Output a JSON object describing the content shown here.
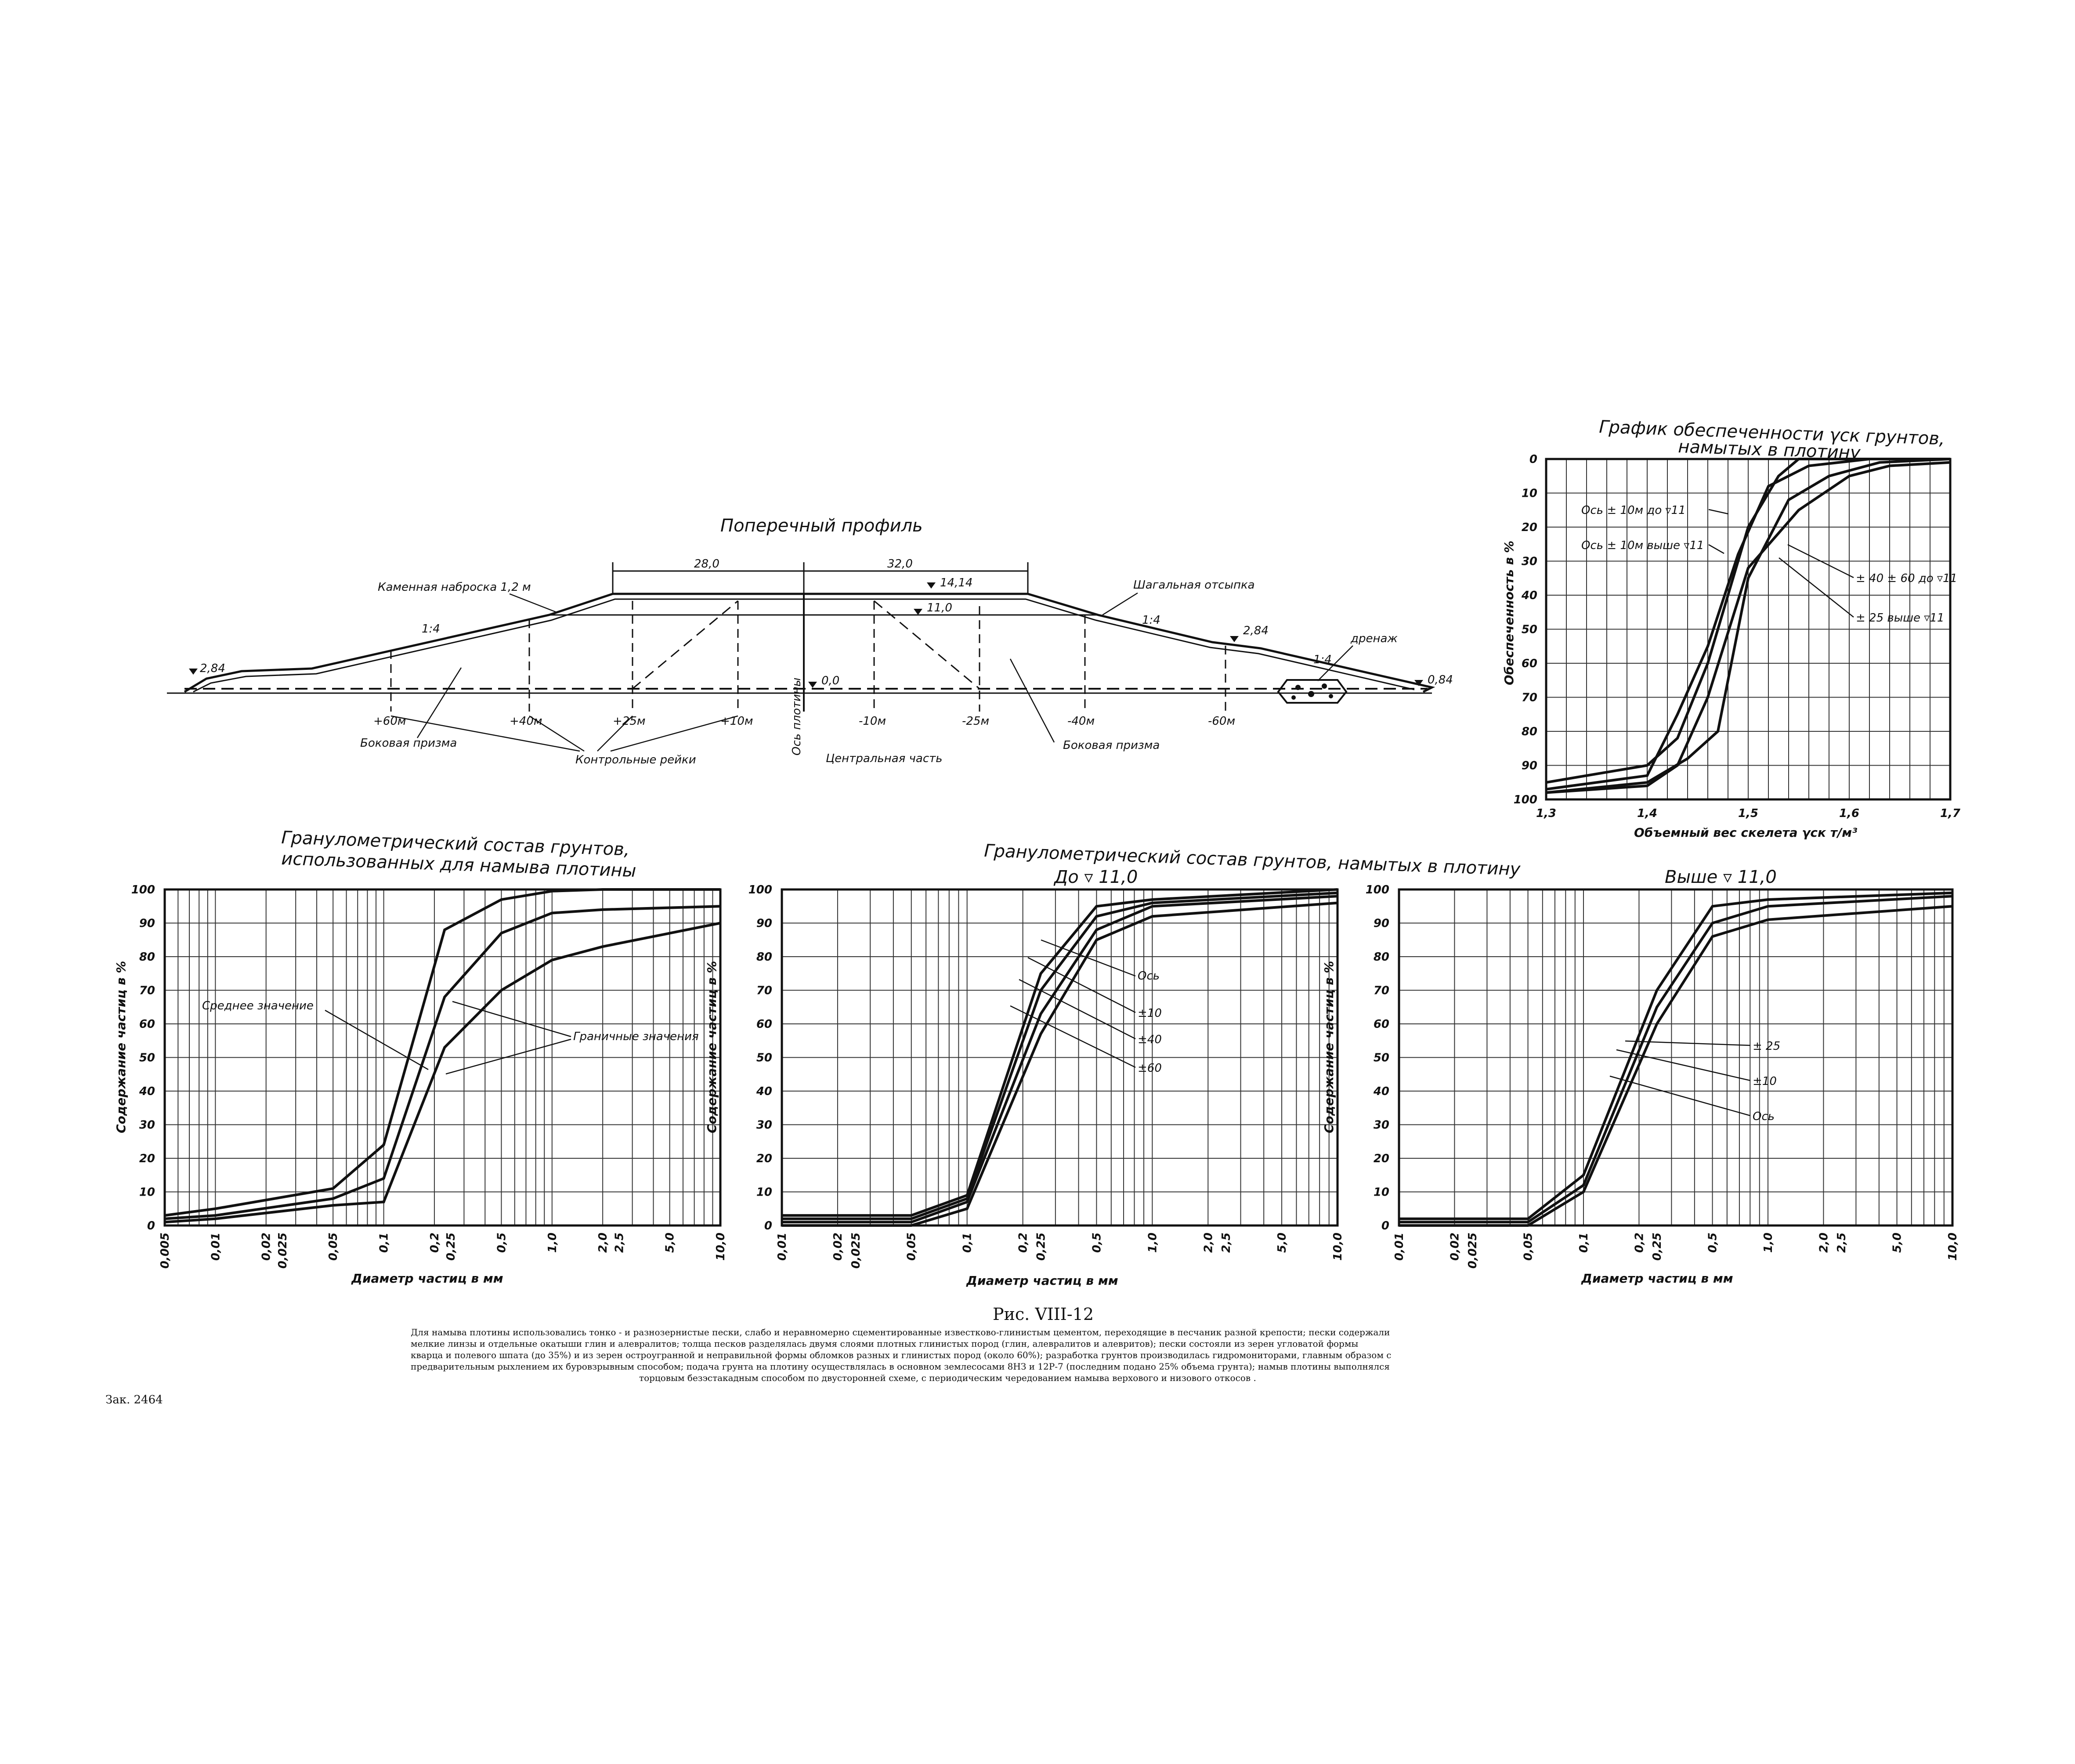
{
  "profile": {
    "title": "Поперечный профиль",
    "dim_left": "28,0",
    "dim_right": "32,0",
    "marks": {
      "crest": "14,14",
      "inner": "11,0",
      "zero": "0,0",
      "left_toe": "2,84",
      "right_berm": "2,84",
      "right_toe": "0,84"
    },
    "slope_labels": [
      "1:4",
      "1:4",
      "1:4"
    ],
    "stations": [
      "+60м",
      "+40м",
      "+25м",
      "+10м",
      "-10м",
      "-25м",
      "-40м",
      "-60м"
    ],
    "axis_label": "Ось плотины",
    "labels": {
      "stone": "Каменная наброска 1,2 м",
      "fill": "Шагальная отсыпка",
      "drain": "дренаж",
      "side_left": "Боковая призма",
      "side_right": "Боковая призма",
      "rails": "Контрольные рейки",
      "center": "Центральная часть"
    }
  },
  "supply_chart": {
    "title_line1": "График обеспеченности γск грунтов,",
    "title_line2": "намытых в плотину",
    "ylabel": "Обеспеченность в %",
    "xlabel": "Объемный вес скелета γск т/м³",
    "yticks": [
      "0",
      "10",
      "20",
      "30",
      "40",
      "50",
      "60",
      "70",
      "80",
      "90",
      "100"
    ],
    "xticks": [
      "1,3",
      "1,4",
      "1,5",
      "1,6",
      "1,7"
    ],
    "labels": [
      "Ось ± 10м до ▿11",
      "Ось ± 10м выше ▿11",
      "± 40 ± 60 до ▿11",
      "± 25 выше ▿11"
    ]
  },
  "gran_titles": {
    "left_line1": "Гранулометрический состав грунтов,",
    "left_line2": "использованных для намыва плотины",
    "mid_line1": "Гранулометрический  состав  грунтов,  намытых  в  плотину",
    "mid_sub": "До ▿ 11,0",
    "right_sub": "Выше ▿ 11,0"
  },
  "gran_common": {
    "ylabel": "Содержание частиц в %",
    "xlabel": "Диаметр частиц в мм",
    "yticks": [
      "0",
      "10",
      "20",
      "30",
      "40",
      "50",
      "60",
      "70",
      "80",
      "90",
      "100"
    ]
  },
  "gran1": {
    "xticks": [
      "0,005",
      "0,01",
      "0,02",
      "0,025",
      "0,05",
      "0,1",
      "0,2",
      "0,25",
      "0,5",
      "1,0",
      "2,0",
      "2,5",
      "5,0",
      "10,0"
    ],
    "labels": [
      "Среднее значение",
      "Граничные значения"
    ]
  },
  "gran2": {
    "xticks": [
      "0,01",
      "0,02",
      "0,025",
      "0,05",
      "0,1",
      "0,2",
      "0,25",
      "0,5",
      "1,0",
      "2,0",
      "2,5",
      "5,0",
      "10,0"
    ],
    "labels": [
      "Ось",
      "±10",
      "±40",
      "±60"
    ]
  },
  "gran3": {
    "xticks": [
      "0,01",
      "0,02",
      "0,025",
      "0,05",
      "0,1",
      "0,2",
      "0,25",
      "0,5",
      "1,0",
      "2,0",
      "2,5",
      "5,0",
      "10,0"
    ],
    "labels": [
      "± 25",
      "±10",
      "Ось"
    ]
  },
  "caption": "Рис. VIII-12",
  "note_lines": [
    "Для намыва плотины использовались тонко - и разнозернистые пески, слабо и неравномерно сцементированные известково-глинистым цементом, переходящие в песчаник разной крепости; пески содержали",
    "мелкие линзы и отдельные окатыши глин и алевралитов; толща песков разделялась двумя слоями плотных глинистых пород (глин, алевралитов и алевритов); пески состояли из зерен угловатой формы",
    "кварца и полевого шпата (до 35%) и из зерен остроугранной и неправильной формы обломков разных и глинистых пород (около 60%); разработка грунтов производилась гидромониторами, главным образом с",
    "предварительным рыхлением их буровзрывным способом; подача грунта на плотину осуществлялась в основном землесосами 8НЗ и 12Р-7 (последним подано 25% объема грунта); намыв плотины выполнялся",
    "торцовым безэстакадным способом по двусторонней схеме, с периодическим чередованием намыва верхового и низового откосов ."
  ],
  "order_no": "Зак. 2464",
  "chart_data": [
    {
      "type": "line",
      "title": "График обеспеченности γск грунтов, намытых в плотину",
      "xlabel": "Объемный вес скелета γск т/м³",
      "ylabel": "Обеспеченность в %",
      "xlim": [
        1.3,
        1.7
      ],
      "ylim": [
        0,
        100
      ],
      "y_inverted": true,
      "series": [
        {
          "name": "Ось ± 10м до ▿11",
          "x": [
            1.3,
            1.4,
            1.43,
            1.46,
            1.5,
            1.53,
            1.55,
            1.6,
            1.7
          ],
          "y": [
            95,
            90,
            82,
            60,
            20,
            5,
            0,
            0,
            0
          ]
        },
        {
          "name": "Ось ± 10м выше ▿11",
          "x": [
            1.3,
            1.4,
            1.43,
            1.46,
            1.49,
            1.52,
            1.56,
            1.62,
            1.7
          ],
          "y": [
            97,
            93,
            75,
            55,
            28,
            8,
            2,
            0,
            0
          ]
        },
        {
          "name": "± 40 ± 60 до ▿11",
          "x": [
            1.3,
            1.4,
            1.44,
            1.47,
            1.5,
            1.54,
            1.58,
            1.63,
            1.7
          ],
          "y": [
            98,
            95,
            88,
            80,
            35,
            12,
            5,
            1,
            0
          ]
        },
        {
          "name": "± 25 выше ▿11",
          "x": [
            1.3,
            1.4,
            1.43,
            1.46,
            1.5,
            1.55,
            1.6,
            1.64,
            1.7
          ],
          "y": [
            98,
            96,
            90,
            70,
            32,
            15,
            5,
            2,
            1
          ]
        }
      ]
    },
    {
      "type": "line",
      "title": "Гранулометрический состав грунтов, использованных для намыва плотины",
      "xlabel": "Диаметр частиц в мм",
      "ylabel": "Содержание частиц в %",
      "x_scale": "log",
      "xlim": [
        0.005,
        10.0
      ],
      "ylim": [
        0,
        100
      ],
      "series": [
        {
          "name": "Граничные значения",
          "x": [
            0.005,
            0.01,
            0.05,
            0.1,
            0.23,
            0.5,
            1.0,
            2.0,
            10.0
          ],
          "y": [
            3,
            5,
            11,
            24,
            88,
            97,
            99.5,
            100,
            100
          ]
        },
        {
          "name": "Среднее значение",
          "x": [
            0.005,
            0.01,
            0.05,
            0.1,
            0.23,
            0.5,
            1.0,
            2.0,
            10.0
          ],
          "y": [
            2,
            3,
            8,
            14,
            68,
            87,
            93,
            94,
            95
          ]
        },
        {
          "name": "Граничные значения",
          "x": [
            0.005,
            0.01,
            0.05,
            0.1,
            0.23,
            0.5,
            1.0,
            2.0,
            10.0
          ],
          "y": [
            1,
            2,
            6,
            7,
            53,
            70,
            79,
            83,
            90
          ]
        }
      ]
    },
    {
      "type": "line",
      "title": "Гранулометрический состав грунтов, намытых в плотину — До ▿ 11,0",
      "xlabel": "Диаметр частиц в мм",
      "ylabel": "Содержание частиц в %",
      "x_scale": "log",
      "xlim": [
        0.01,
        10.0
      ],
      "ylim": [
        0,
        100
      ],
      "series": [
        {
          "name": "Ось",
          "x": [
            0.01,
            0.05,
            0.1,
            0.25,
            0.5,
            1.0,
            10.0
          ],
          "y": [
            3,
            3,
            9,
            75,
            95,
            97,
            100
          ]
        },
        {
          "name": "±10",
          "x": [
            0.01,
            0.05,
            0.1,
            0.25,
            0.5,
            1.0,
            10.0
          ],
          "y": [
            2,
            2,
            8,
            70,
            92,
            96,
            99
          ]
        },
        {
          "name": "±40",
          "x": [
            0.01,
            0.05,
            0.1,
            0.25,
            0.5,
            1.0,
            10.0
          ],
          "y": [
            1,
            1,
            7,
            63,
            88,
            95,
            98
          ]
        },
        {
          "name": "±60",
          "x": [
            0.01,
            0.05,
            0.1,
            0.25,
            0.5,
            1.0,
            10.0
          ],
          "y": [
            0,
            0,
            5,
            57,
            85,
            92,
            96
          ]
        }
      ]
    },
    {
      "type": "line",
      "title": "Гранулометрический состав грунтов, намытых в плотину — Выше ▿ 11,0",
      "xlabel": "Диаметр частиц в мм",
      "ylabel": "Содержание частиц в %",
      "x_scale": "log",
      "xlim": [
        0.01,
        10.0
      ],
      "ylim": [
        0,
        100
      ],
      "series": [
        {
          "name": "± 25",
          "x": [
            0.01,
            0.05,
            0.1,
            0.25,
            0.5,
            1.0,
            10.0
          ],
          "y": [
            2,
            2,
            15,
            70,
            95,
            97,
            99
          ]
        },
        {
          "name": "±10",
          "x": [
            0.01,
            0.05,
            0.1,
            0.25,
            0.5,
            1.0,
            10.0
          ],
          "y": [
            1,
            1,
            12,
            65,
            90,
            95,
            98
          ]
        },
        {
          "name": "Ось",
          "x": [
            0.01,
            0.05,
            0.1,
            0.25,
            0.5,
            1.0,
            10.0
          ],
          "y": [
            0,
            0,
            10,
            60,
            86,
            91,
            95
          ]
        }
      ]
    }
  ]
}
